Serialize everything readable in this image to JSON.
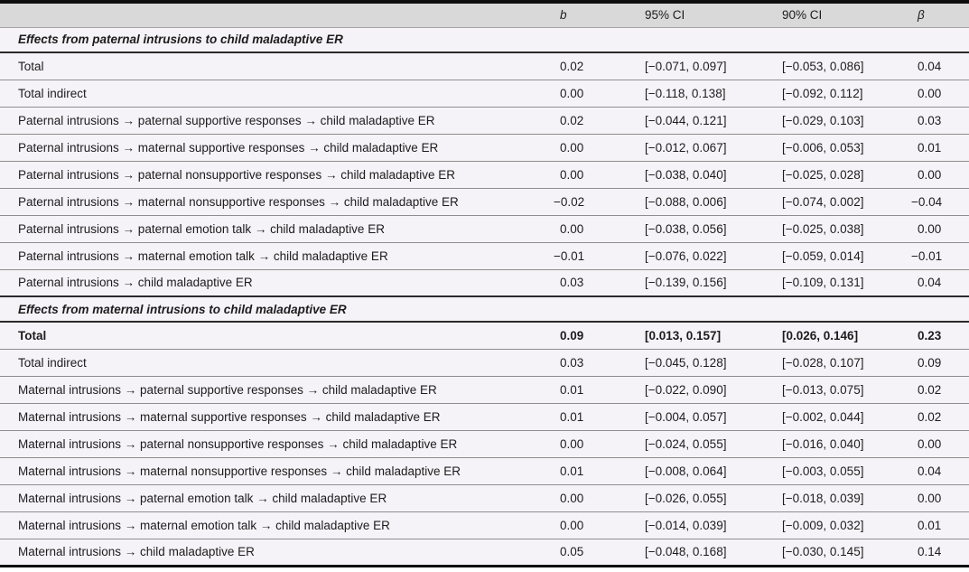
{
  "colors": {
    "table_top_bottom_border": "#0e0e0e",
    "header_row_bg": "#d9d9d9",
    "body_row_bg": "#f6f3f8",
    "row_separator": "#8d8d8d",
    "text": "#1c1c1c"
  },
  "table": {
    "columns": [
      {
        "key": "label",
        "label": "",
        "italic": false
      },
      {
        "key": "b",
        "label": "b",
        "italic": true
      },
      {
        "key": "ci95",
        "label": "95% CI",
        "italic": false
      },
      {
        "key": "ci90",
        "label": "90% CI",
        "italic": false
      },
      {
        "key": "beta",
        "label": "β",
        "italic": true
      }
    ],
    "sections": [
      {
        "title": "Effects from paternal intrusions to child maladaptive ER",
        "rows": [
          {
            "label": "Total",
            "b": "0.02",
            "ci95": "[−0.071, 0.097]",
            "ci90": "[−0.053, 0.086]",
            "beta": "0.04",
            "bold": false
          },
          {
            "label": "Total indirect",
            "b": "0.00",
            "ci95": "[−0.118, 0.138]",
            "ci90": "[−0.092, 0.112]",
            "beta": "0.00",
            "bold": false
          },
          {
            "label": "Paternal intrusions → paternal supportive responses → child maladaptive ER",
            "b": "0.02",
            "ci95": "[−0.044, 0.121]",
            "ci90": "[−0.029, 0.103]",
            "beta": "0.03",
            "bold": false
          },
          {
            "label": "Paternal intrusions → maternal supportive responses → child maladaptive ER",
            "b": "0.00",
            "ci95": "[−0.012, 0.067]",
            "ci90": "[−0.006, 0.053]",
            "beta": "0.01",
            "bold": false
          },
          {
            "label": "Paternal intrusions → paternal nonsupportive responses → child maladaptive ER",
            "b": "0.00",
            "ci95": "[−0.038, 0.040]",
            "ci90": "[−0.025, 0.028]",
            "beta": "0.00",
            "bold": false
          },
          {
            "label": "Paternal intrusions → maternal nonsupportive responses → child maladaptive ER",
            "b": "−0.02",
            "ci95": "[−0.088, 0.006]",
            "ci90": "[−0.074, 0.002]",
            "beta": "−0.04",
            "bold": false
          },
          {
            "label": "Paternal intrusions → paternal emotion talk → child maladaptive ER",
            "b": "0.00",
            "ci95": "[−0.038, 0.056]",
            "ci90": "[−0.025, 0.038]",
            "beta": "0.00",
            "bold": false
          },
          {
            "label": "Paternal intrusions → maternal emotion talk → child maladaptive ER",
            "b": "−0.01",
            "ci95": "[−0.076, 0.022]",
            "ci90": "[−0.059, 0.014]",
            "beta": "−0.01",
            "bold": false
          },
          {
            "label": "Paternal intrusions → child maladaptive ER",
            "b": "0.03",
            "ci95": "[−0.139, 0.156]",
            "ci90": "[−0.109, 0.131]",
            "beta": "0.04",
            "bold": false
          }
        ]
      },
      {
        "title": "Effects from maternal intrusions to child maladaptive ER",
        "rows": [
          {
            "label": "Total",
            "b": "0.09",
            "ci95": "[0.013, 0.157]",
            "ci90": "[0.026, 0.146]",
            "beta": "0.23",
            "bold": true
          },
          {
            "label": "Total indirect",
            "b": "0.03",
            "ci95": "[−0.045, 0.128]",
            "ci90": "[−0.028, 0.107]",
            "beta": "0.09",
            "bold": false
          },
          {
            "label": "Maternal intrusions → paternal supportive responses → child maladaptive ER",
            "b": "0.01",
            "ci95": "[−0.022, 0.090]",
            "ci90": "[−0.013, 0.075]",
            "beta": "0.02",
            "bold": false
          },
          {
            "label": "Maternal intrusions → maternal supportive responses → child maladaptive ER",
            "b": "0.01",
            "ci95": "[−0.004, 0.057]",
            "ci90": "[−0.002, 0.044]",
            "beta": "0.02",
            "bold": false
          },
          {
            "label": "Maternal intrusions → paternal nonsupportive responses → child maladaptive ER",
            "b": "0.00",
            "ci95": "[−0.024, 0.055]",
            "ci90": "[−0.016, 0.040]",
            "beta": "0.00",
            "bold": false
          },
          {
            "label": "Maternal intrusions → maternal nonsupportive responses → child maladaptive ER",
            "b": "0.01",
            "ci95": "[−0.008, 0.064]",
            "ci90": "[−0.003, 0.055]",
            "beta": "0.04",
            "bold": false
          },
          {
            "label": "Maternal intrusions → paternal emotion talk → child maladaptive ER",
            "b": "0.00",
            "ci95": "[−0.026, 0.055]",
            "ci90": "[−0.018, 0.039]",
            "beta": "0.00",
            "bold": false
          },
          {
            "label": "Maternal intrusions → maternal emotion talk → child maladaptive ER",
            "b": "0.00",
            "ci95": "[−0.014, 0.039]",
            "ci90": "[−0.009, 0.032]",
            "beta": "0.01",
            "bold": false
          },
          {
            "label": "Maternal intrusions → child maladaptive ER",
            "b": "0.05",
            "ci95": "[−0.048, 0.168]",
            "ci90": "[−0.030, 0.145]",
            "beta": "0.14",
            "bold": false
          }
        ]
      }
    ]
  }
}
